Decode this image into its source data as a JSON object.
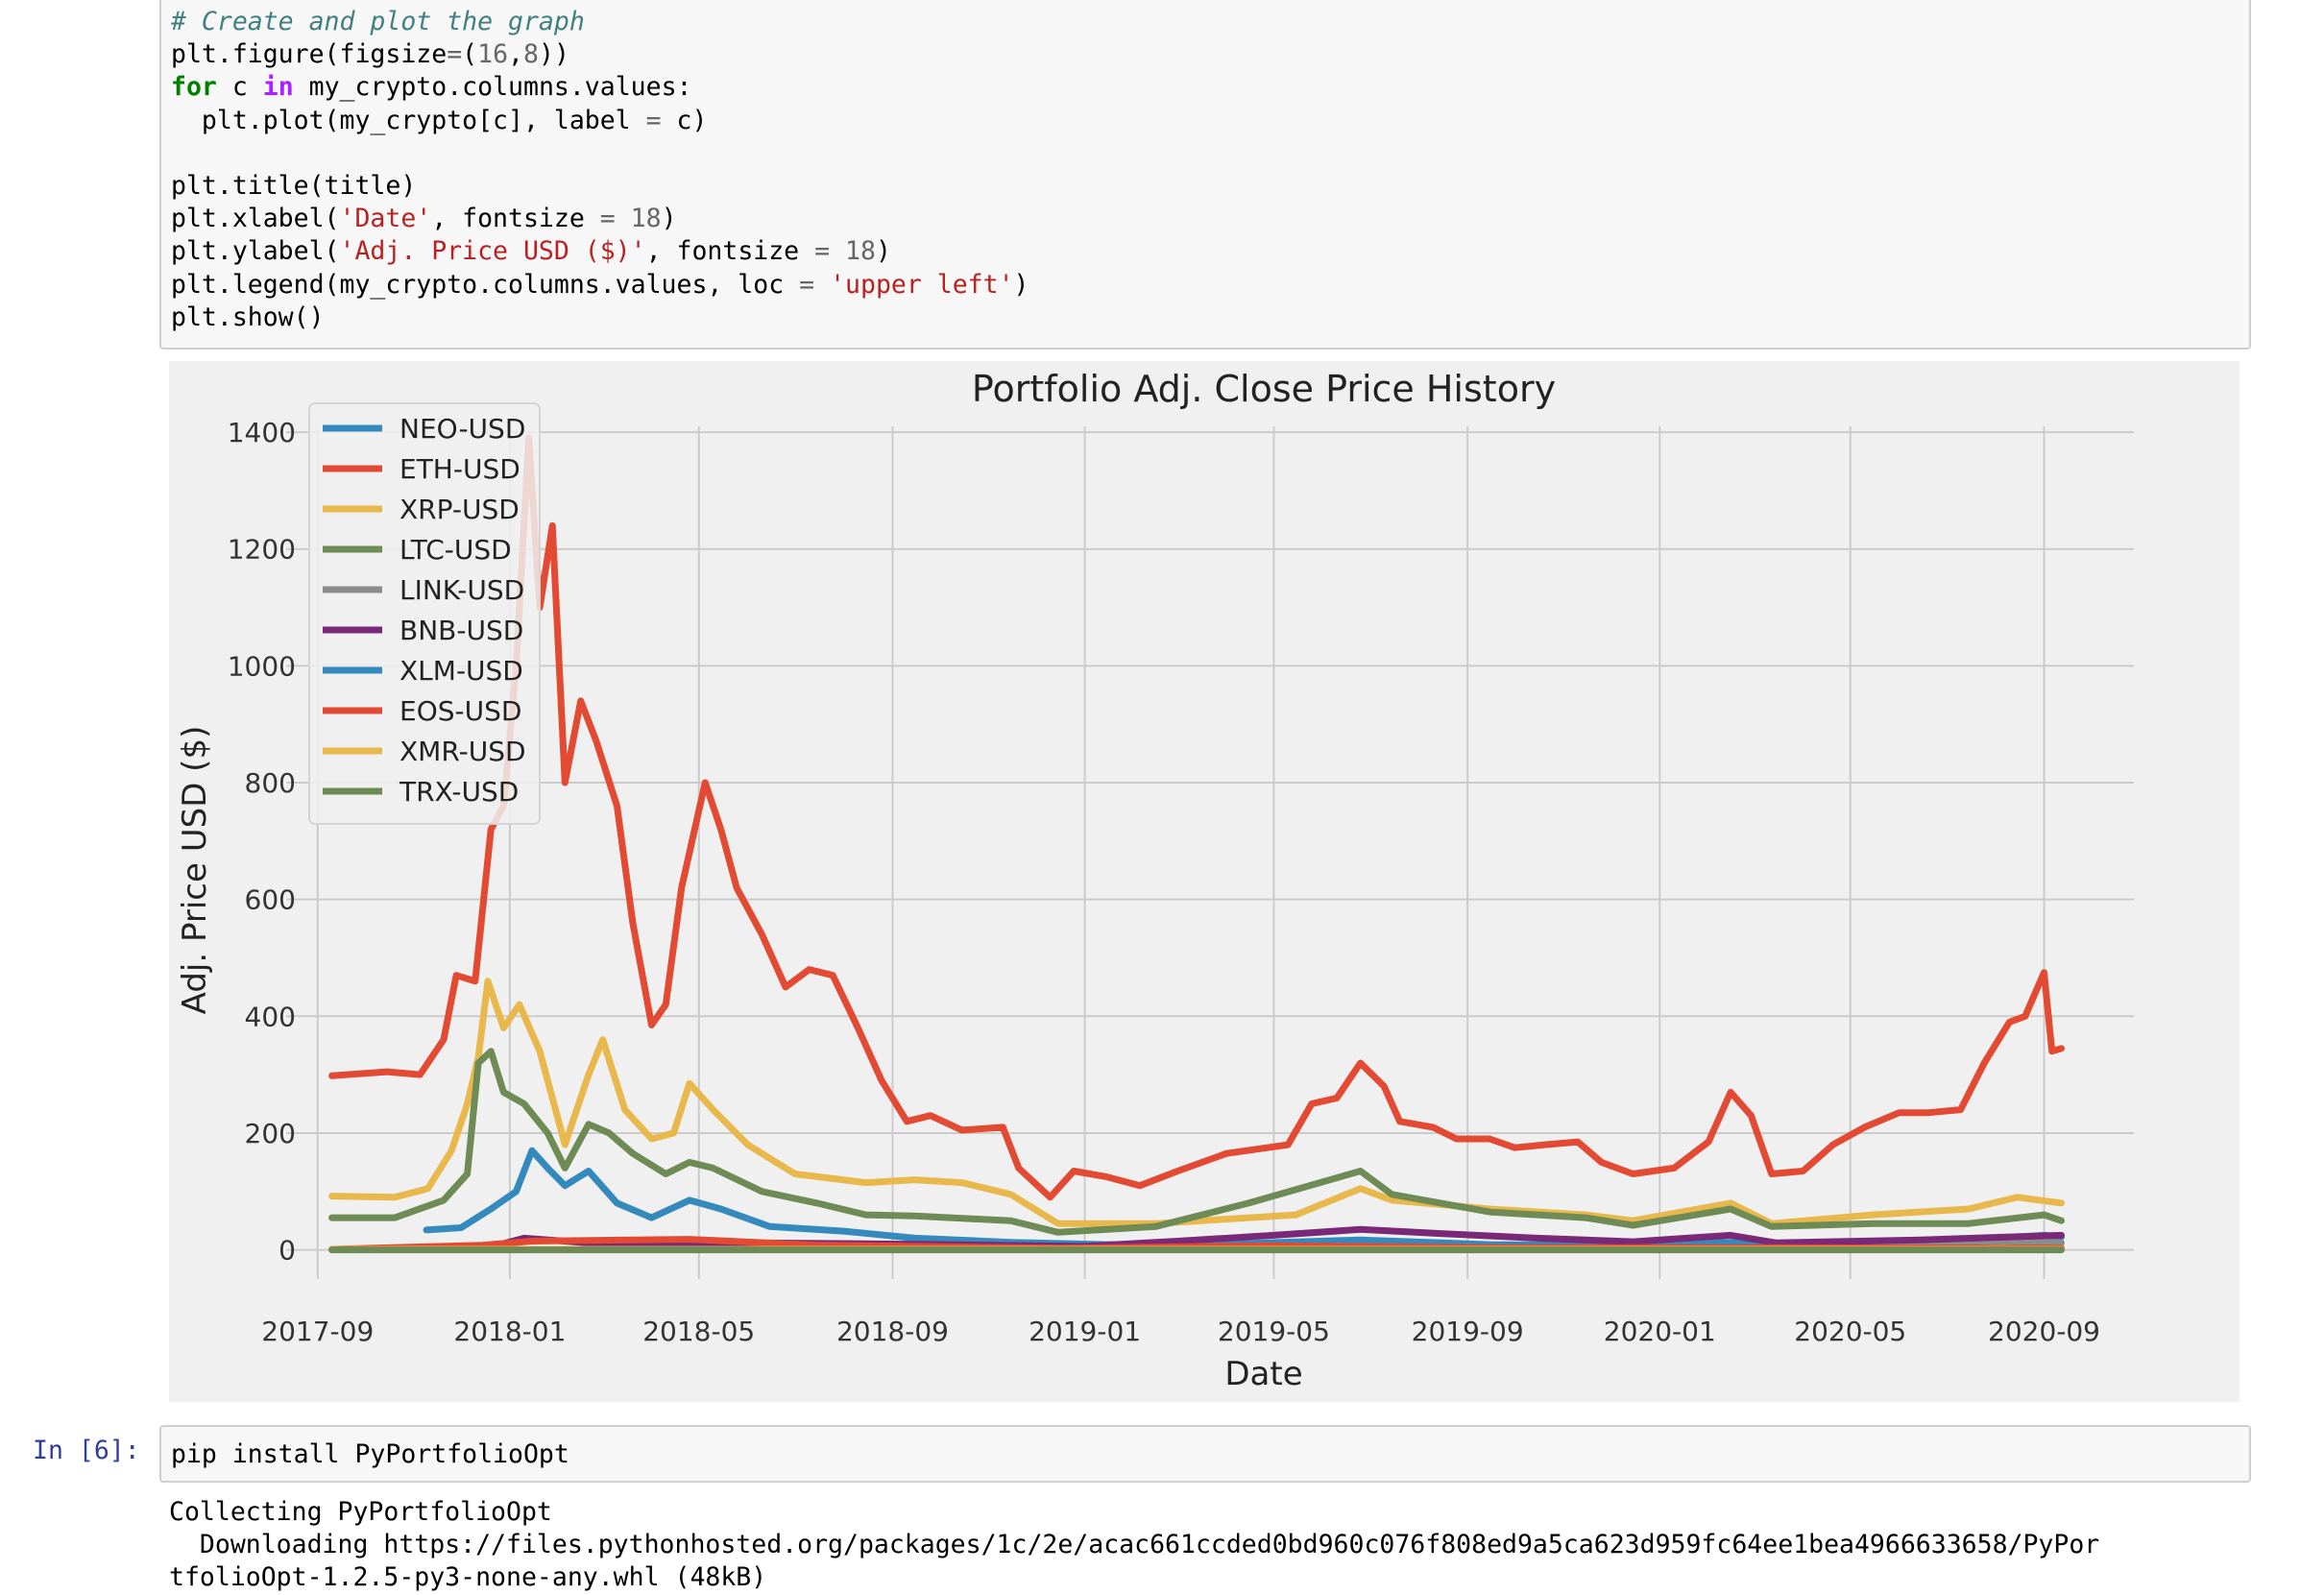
{
  "code_cell": {
    "lines": [
      [
        {
          "t": "# Create and plot the graph",
          "c": "cm"
        }
      ],
      [
        {
          "t": "plt.figure(figsize",
          "c": ""
        },
        {
          "t": "=",
          "c": "op"
        },
        {
          "t": "(",
          "c": ""
        },
        {
          "t": "16",
          "c": "num"
        },
        {
          "t": ",",
          "c": ""
        },
        {
          "t": "8",
          "c": "num"
        },
        {
          "t": "))",
          "c": ""
        }
      ],
      [
        {
          "t": "for",
          "c": "kw"
        },
        {
          "t": " c ",
          "c": ""
        },
        {
          "t": "in",
          "c": "kw2"
        },
        {
          "t": " my_crypto.columns.values:",
          "c": ""
        }
      ],
      [
        {
          "t": "  plt.plot(my_crypto[c], label ",
          "c": ""
        },
        {
          "t": "=",
          "c": "op"
        },
        {
          "t": " c)",
          "c": ""
        }
      ],
      [],
      [
        {
          "t": "plt.title(title)",
          "c": ""
        }
      ],
      [
        {
          "t": "plt.xlabel(",
          "c": ""
        },
        {
          "t": "'Date'",
          "c": "str"
        },
        {
          "t": ", fontsize ",
          "c": ""
        },
        {
          "t": "=",
          "c": "op"
        },
        {
          "t": " ",
          "c": ""
        },
        {
          "t": "18",
          "c": "num"
        },
        {
          "t": ")",
          "c": ""
        }
      ],
      [
        {
          "t": "plt.ylabel(",
          "c": ""
        },
        {
          "t": "'Adj. Price USD ($)'",
          "c": "str"
        },
        {
          "t": ", fontsize ",
          "c": ""
        },
        {
          "t": "=",
          "c": "op"
        },
        {
          "t": " ",
          "c": ""
        },
        {
          "t": "18",
          "c": "num"
        },
        {
          "t": ")",
          "c": ""
        }
      ],
      [
        {
          "t": "plt.legend(my_crypto.columns.values, loc ",
          "c": ""
        },
        {
          "t": "=",
          "c": "op"
        },
        {
          "t": " ",
          "c": ""
        },
        {
          "t": "'upper left'",
          "c": "str"
        },
        {
          "t": ")",
          "c": ""
        }
      ],
      [
        {
          "t": "plt.show()",
          "c": ""
        }
      ]
    ]
  },
  "next_cell": {
    "prompt": "In [6]:",
    "code": "pip install PyPortfolioOpt"
  },
  "stream_output": {
    "line1": "Collecting PyPortfolioOpt",
    "line2": "  Downloading https://files.pythonhosted.org/packages/1c/2e/acac661ccded0bd960c076f808ed9a5ca623d959fc64ee1bea4966633658/PyPor",
    "line3": "tfolioOpt-1.2.5-py3-none-any.whl (48kB)"
  },
  "chart_data": {
    "type": "line",
    "title": "Portfolio Adj. Close Price History",
    "xlabel": "Date",
    "ylabel": "Adj. Price USD ($)",
    "x_ticks": [
      "2017-09",
      "2018-01",
      "2018-05",
      "2018-09",
      "2019-01",
      "2019-05",
      "2019-09",
      "2020-01",
      "2020-05",
      "2020-09"
    ],
    "y_ticks": [
      "0",
      "200",
      "400",
      "600",
      "800",
      "1000",
      "1200",
      "1400"
    ],
    "xlim": [
      "2017-08-12",
      "2020-10-28"
    ],
    "ylim": [
      -50,
      1410
    ],
    "grid": true,
    "legend_position": "upper left",
    "series": [
      {
        "name": "NEO-USD",
        "color": "#348ABD",
        "points": [
          [
            "2017-11-09",
            34
          ],
          [
            "2017-12-01",
            38
          ],
          [
            "2017-12-20",
            70
          ],
          [
            "2018-01-05",
            100
          ],
          [
            "2018-01-15",
            170
          ],
          [
            "2018-01-25",
            140
          ],
          [
            "2018-02-05",
            110
          ],
          [
            "2018-02-20",
            135
          ],
          [
            "2018-03-10",
            80
          ],
          [
            "2018-04-01",
            55
          ],
          [
            "2018-04-25",
            85
          ],
          [
            "2018-05-15",
            70
          ],
          [
            "2018-06-15",
            40
          ],
          [
            "2018-08-01",
            32
          ],
          [
            "2018-09-15",
            20
          ],
          [
            "2018-11-15",
            13
          ],
          [
            "2019-01-15",
            9
          ],
          [
            "2019-04-15",
            11
          ],
          [
            "2019-06-25",
            17
          ],
          [
            "2019-09-15",
            9
          ],
          [
            "2019-12-15",
            8
          ],
          [
            "2020-02-15",
            13
          ],
          [
            "2020-03-15",
            7
          ],
          [
            "2020-06-15",
            11
          ],
          [
            "2020-09-01",
            25
          ],
          [
            "2020-09-12",
            22
          ]
        ]
      },
      {
        "name": "ETH-USD",
        "color": "#E24A33",
        "points": [
          [
            "2017-09-10",
            298
          ],
          [
            "2017-10-15",
            305
          ],
          [
            "2017-11-05",
            300
          ],
          [
            "2017-11-20",
            360
          ],
          [
            "2017-11-28",
            470
          ],
          [
            "2017-12-10",
            460
          ],
          [
            "2017-12-20",
            720
          ],
          [
            "2017-12-28",
            760
          ],
          [
            "2018-01-05",
            1000
          ],
          [
            "2018-01-13",
            1390
          ],
          [
            "2018-01-20",
            1100
          ],
          [
            "2018-01-28",
            1240
          ],
          [
            "2018-02-05",
            800
          ],
          [
            "2018-02-15",
            940
          ],
          [
            "2018-02-25",
            870
          ],
          [
            "2018-03-10",
            760
          ],
          [
            "2018-03-20",
            560
          ],
          [
            "2018-04-01",
            385
          ],
          [
            "2018-04-10",
            420
          ],
          [
            "2018-04-20",
            620
          ],
          [
            "2018-05-05",
            800
          ],
          [
            "2018-05-15",
            720
          ],
          [
            "2018-05-25",
            620
          ],
          [
            "2018-06-10",
            540
          ],
          [
            "2018-06-25",
            450
          ],
          [
            "2018-07-10",
            480
          ],
          [
            "2018-07-25",
            470
          ],
          [
            "2018-08-10",
            380
          ],
          [
            "2018-08-25",
            290
          ],
          [
            "2018-09-10",
            220
          ],
          [
            "2018-09-25",
            230
          ],
          [
            "2018-10-15",
            205
          ],
          [
            "2018-11-10",
            210
          ],
          [
            "2018-11-20",
            140
          ],
          [
            "2018-12-10",
            90
          ],
          [
            "2018-12-25",
            135
          ],
          [
            "2019-01-15",
            125
          ],
          [
            "2019-02-05",
            110
          ],
          [
            "2019-03-01",
            135
          ],
          [
            "2019-04-01",
            165
          ],
          [
            "2019-05-10",
            180
          ],
          [
            "2019-05-25",
            250
          ],
          [
            "2019-06-10",
            260
          ],
          [
            "2019-06-25",
            320
          ],
          [
            "2019-07-10",
            280
          ],
          [
            "2019-07-20",
            220
          ],
          [
            "2019-08-10",
            210
          ],
          [
            "2019-08-25",
            190
          ],
          [
            "2019-09-15",
            190
          ],
          [
            "2019-10-01",
            175
          ],
          [
            "2019-10-20",
            180
          ],
          [
            "2019-11-10",
            185
          ],
          [
            "2019-11-25",
            150
          ],
          [
            "2019-12-15",
            130
          ],
          [
            "2020-01-10",
            140
          ],
          [
            "2020-02-01",
            185
          ],
          [
            "2020-02-15",
            270
          ],
          [
            "2020-02-28",
            230
          ],
          [
            "2020-03-12",
            130
          ],
          [
            "2020-04-01",
            135
          ],
          [
            "2020-04-20",
            180
          ],
          [
            "2020-05-10",
            210
          ],
          [
            "2020-06-01",
            235
          ],
          [
            "2020-06-20",
            235
          ],
          [
            "2020-07-10",
            240
          ],
          [
            "2020-07-25",
            320
          ],
          [
            "2020-08-10",
            390
          ],
          [
            "2020-08-20",
            400
          ],
          [
            "2020-09-01",
            475
          ],
          [
            "2020-09-06",
            340
          ],
          [
            "2020-09-12",
            345
          ]
        ]
      },
      {
        "name": "XRP-USD",
        "color": "#E8B84C",
        "points": [
          [
            "2017-09-10",
            92
          ],
          [
            "2017-10-20",
            90
          ],
          [
            "2017-11-10",
            105
          ],
          [
            "2017-11-25",
            170
          ],
          [
            "2017-12-05",
            250
          ],
          [
            "2017-12-12",
            330
          ],
          [
            "2017-12-18",
            460
          ],
          [
            "2017-12-28",
            380
          ],
          [
            "2018-01-07",
            420
          ],
          [
            "2018-01-20",
            340
          ],
          [
            "2018-02-05",
            180
          ],
          [
            "2018-02-20",
            300
          ],
          [
            "2018-03-01",
            360
          ],
          [
            "2018-03-15",
            240
          ],
          [
            "2018-04-01",
            190
          ],
          [
            "2018-04-15",
            200
          ],
          [
            "2018-04-25",
            285
          ],
          [
            "2018-05-10",
            240
          ],
          [
            "2018-06-01",
            180
          ],
          [
            "2018-07-01",
            130
          ],
          [
            "2018-08-15",
            115
          ],
          [
            "2018-09-15",
            120
          ],
          [
            "2018-10-15",
            115
          ],
          [
            "2018-11-15",
            95
          ],
          [
            "2018-12-15",
            45
          ],
          [
            "2019-02-15",
            45
          ],
          [
            "2019-05-15",
            60
          ],
          [
            "2019-06-25",
            105
          ],
          [
            "2019-07-15",
            85
          ],
          [
            "2019-09-15",
            70
          ],
          [
            "2019-11-15",
            60
          ],
          [
            "2019-12-15",
            50
          ],
          [
            "2020-02-15",
            80
          ],
          [
            "2020-03-12",
            45
          ],
          [
            "2020-05-15",
            60
          ],
          [
            "2020-07-15",
            70
          ],
          [
            "2020-08-15",
            90
          ],
          [
            "2020-09-12",
            80
          ]
        ]
      },
      {
        "name": "LTC-USD",
        "color": "#6E8B55",
        "points": [
          [
            "2017-09-10",
            55
          ],
          [
            "2017-10-20",
            55
          ],
          [
            "2017-11-20",
            85
          ],
          [
            "2017-12-05",
            130
          ],
          [
            "2017-12-12",
            320
          ],
          [
            "2017-12-20",
            340
          ],
          [
            "2017-12-28",
            270
          ],
          [
            "2018-01-10",
            250
          ],
          [
            "2018-01-25",
            200
          ],
          [
            "2018-02-05",
            140
          ],
          [
            "2018-02-20",
            215
          ],
          [
            "2018-03-05",
            200
          ],
          [
            "2018-03-20",
            165
          ],
          [
            "2018-04-10",
            130
          ],
          [
            "2018-04-25",
            150
          ],
          [
            "2018-05-10",
            140
          ],
          [
            "2018-06-10",
            100
          ],
          [
            "2018-07-15",
            80
          ],
          [
            "2018-08-15",
            60
          ],
          [
            "2018-09-15",
            58
          ],
          [
            "2018-11-15",
            50
          ],
          [
            "2018-12-15",
            30
          ],
          [
            "2019-02-15",
            40
          ],
          [
            "2019-04-15",
            80
          ],
          [
            "2019-06-25",
            135
          ],
          [
            "2019-07-15",
            95
          ],
          [
            "2019-09-15",
            65
          ],
          [
            "2019-11-15",
            55
          ],
          [
            "2019-12-15",
            42
          ],
          [
            "2020-02-15",
            70
          ],
          [
            "2020-03-12",
            40
          ],
          [
            "2020-05-15",
            45
          ],
          [
            "2020-07-15",
            45
          ],
          [
            "2020-09-01",
            60
          ],
          [
            "2020-09-12",
            50
          ]
        ]
      },
      {
        "name": "LINK-USD",
        "color": "#8C8C8C",
        "points": [
          [
            "2017-09-20",
            1
          ],
          [
            "2018-06-01",
            1
          ],
          [
            "2019-06-01",
            3
          ],
          [
            "2020-03-01",
            3
          ],
          [
            "2020-08-01",
            15
          ],
          [
            "2020-09-12",
            12
          ]
        ]
      },
      {
        "name": "BNB-USD",
        "color": "#7A2878",
        "points": [
          [
            "2017-09-10",
            1
          ],
          [
            "2017-12-20",
            5
          ],
          [
            "2018-01-10",
            20
          ],
          [
            "2018-03-01",
            10
          ],
          [
            "2018-06-01",
            12
          ],
          [
            "2018-09-01",
            10
          ],
          [
            "2019-01-01",
            6
          ],
          [
            "2019-03-01",
            15
          ],
          [
            "2019-05-01",
            25
          ],
          [
            "2019-06-25",
            35
          ],
          [
            "2019-08-15",
            28
          ],
          [
            "2019-10-15",
            20
          ],
          [
            "2019-12-15",
            14
          ],
          [
            "2020-02-15",
            25
          ],
          [
            "2020-03-15",
            12
          ],
          [
            "2020-06-15",
            17
          ],
          [
            "2020-09-12",
            25
          ]
        ]
      },
      {
        "name": "XLM-USD",
        "color": "#348ABD",
        "points": [
          [
            "2017-09-10",
            1
          ],
          [
            "2018-09-12",
            1
          ],
          [
            "2020-09-12",
            1
          ]
        ]
      },
      {
        "name": "EOS-USD",
        "color": "#E24A33",
        "points": [
          [
            "2017-09-10",
            1
          ],
          [
            "2017-12-15",
            8
          ],
          [
            "2018-01-15",
            15
          ],
          [
            "2018-04-25",
            18
          ],
          [
            "2018-07-15",
            8
          ],
          [
            "2018-12-15",
            3
          ],
          [
            "2019-05-01",
            7
          ],
          [
            "2019-09-15",
            4
          ],
          [
            "2020-02-15",
            4
          ],
          [
            "2020-09-12",
            3
          ]
        ]
      },
      {
        "name": "XMR-USD",
        "color": "#E8B84C",
        "points": [
          [
            "2017-09-10",
            1
          ],
          [
            "2020-09-12",
            1
          ]
        ]
      },
      {
        "name": "TRX-USD",
        "color": "#6E8B55",
        "points": [
          [
            "2017-09-10",
            0
          ],
          [
            "2020-09-12",
            0
          ]
        ]
      }
    ]
  }
}
